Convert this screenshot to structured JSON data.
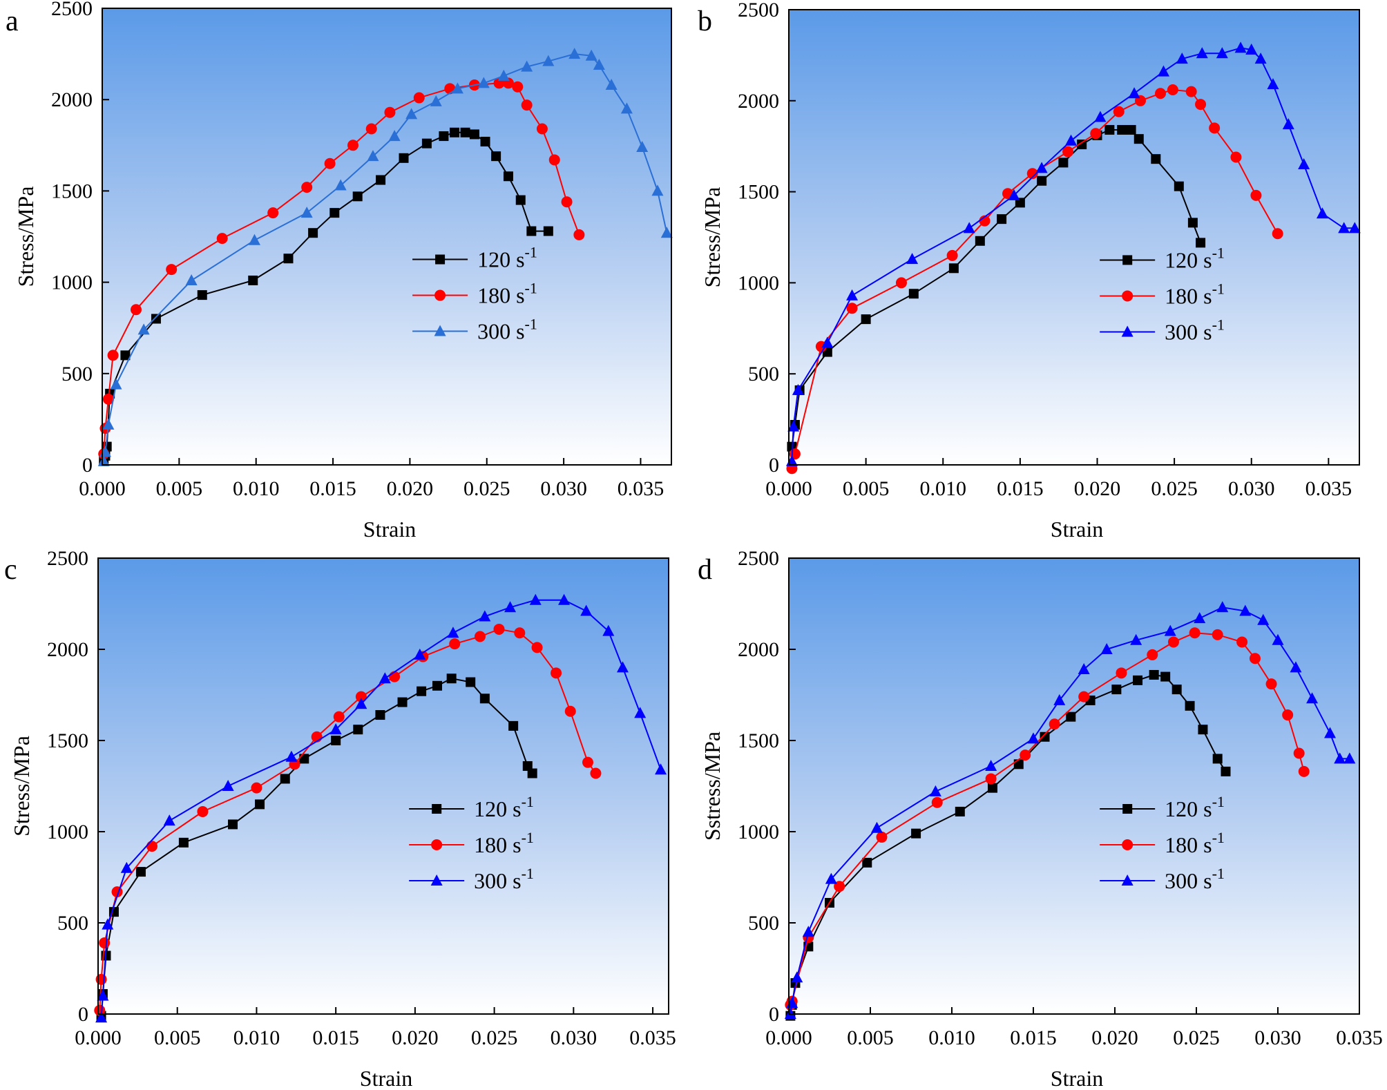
{
  "figure": {
    "panels": [
      "a",
      "b",
      "c",
      "d"
    ]
  },
  "colors": {
    "s120": "#000000",
    "s180": "#ff0000",
    "s300": "#0000ff",
    "s300_a": "#2a6fd6",
    "bg_top": "#5b9ae8",
    "bg_bottom": "#ffffff"
  },
  "chart_data": [
    {
      "panel": "a",
      "type": "line",
      "xlabel": "Strain",
      "ylabel": "Stress/MPa",
      "xlim": [
        0,
        0.037
      ],
      "ylim": [
        0,
        2500
      ],
      "xticks": [
        "0.000",
        "0.005",
        "0.010",
        "0.015",
        "0.020",
        "0.025",
        "0.030",
        "0.035"
      ],
      "yticks": [
        "0",
        "500",
        "1000",
        "1500",
        "2000",
        "2500"
      ],
      "legend": {
        "position": "right-middle"
      },
      "series": [
        {
          "name": "120 s",
          "sup": "-1",
          "color_key": "s120",
          "marker": "square",
          "x": [
            0.0001,
            0.0002,
            0.0003,
            0.0005,
            0.0015,
            0.0035,
            0.0065,
            0.0098,
            0.0121,
            0.0137,
            0.0151,
            0.0166,
            0.0181,
            0.0196,
            0.0211,
            0.0222,
            0.0229,
            0.0236,
            0.0242,
            0.0249,
            0.0256,
            0.0264,
            0.0272,
            0.0279,
            0.029
          ],
          "y": [
            20,
            50,
            100,
            390,
            600,
            800,
            930,
            1010,
            1130,
            1270,
            1380,
            1470,
            1560,
            1680,
            1760,
            1800,
            1820,
            1820,
            1810,
            1770,
            1690,
            1580,
            1450,
            1280,
            1280
          ]
        },
        {
          "name": "180 s",
          "sup": "-1",
          "color_key": "s180",
          "marker": "circle",
          "x": [
            0.0001,
            0.0002,
            0.0004,
            0.0007,
            0.0022,
            0.0045,
            0.0078,
            0.0111,
            0.0133,
            0.0148,
            0.0163,
            0.0175,
            0.0187,
            0.0206,
            0.0226,
            0.0242,
            0.0258,
            0.0264,
            0.027,
            0.0276,
            0.0286,
            0.0294,
            0.0302,
            0.031
          ],
          "y": [
            60,
            200,
            360,
            600,
            850,
            1070,
            1240,
            1380,
            1520,
            1650,
            1750,
            1840,
            1930,
            2010,
            2060,
            2080,
            2090,
            2090,
            2070,
            1970,
            1840,
            1670,
            1440,
            1260
          ]
        },
        {
          "name": "300 s",
          "sup": "-1",
          "color_key": "s300_a",
          "marker": "triangle",
          "x": [
            0.0001,
            0.0002,
            0.0004,
            0.0009,
            0.0027,
            0.0058,
            0.0099,
            0.0133,
            0.0155,
            0.0176,
            0.019,
            0.0201,
            0.0217,
            0.0231,
            0.0248,
            0.0261,
            0.0276,
            0.029,
            0.0307,
            0.0318,
            0.0323,
            0.0331,
            0.0341,
            0.0351,
            0.0361,
            0.0367
          ],
          "y": [
            20,
            70,
            220,
            440,
            740,
            1010,
            1230,
            1380,
            1530,
            1690,
            1800,
            1920,
            1990,
            2060,
            2090,
            2130,
            2180,
            2210,
            2250,
            2240,
            2190,
            2080,
            1950,
            1740,
            1500,
            1270
          ]
        }
      ]
    },
    {
      "panel": "b",
      "type": "line",
      "xlabel": "Strain",
      "ylabel": "Stress/MPa",
      "xlim": [
        0,
        0.037
      ],
      "ylim": [
        0,
        2500
      ],
      "xticks": [
        "0.000",
        "0.005",
        "0.010",
        "0.015",
        "0.020",
        "0.025",
        "0.030",
        "0.035"
      ],
      "yticks": [
        "0",
        "500",
        "1000",
        "1500",
        "2000",
        "2500"
      ],
      "legend": {
        "position": "right-middle"
      },
      "series": [
        {
          "name": "120 s",
          "sup": "-1",
          "color_key": "s120",
          "marker": "square",
          "x": [
            0.0002,
            0.0004,
            0.0007,
            0.0025,
            0.005,
            0.0081,
            0.0107,
            0.0124,
            0.0138,
            0.015,
            0.0164,
            0.0178,
            0.019,
            0.02,
            0.0208,
            0.0216,
            0.0222,
            0.0227,
            0.0238,
            0.0253,
            0.0262,
            0.0267
          ],
          "y": [
            100,
            220,
            410,
            620,
            800,
            940,
            1080,
            1230,
            1350,
            1440,
            1560,
            1660,
            1760,
            1810,
            1840,
            1840,
            1840,
            1790,
            1680,
            1530,
            1330,
            1220
          ]
        },
        {
          "name": "180 s",
          "sup": "-1",
          "color_key": "s180",
          "marker": "circle",
          "x": [
            0.0002,
            0.0004,
            0.0021,
            0.0041,
            0.0073,
            0.0106,
            0.0127,
            0.0142,
            0.0158,
            0.0181,
            0.0199,
            0.0214,
            0.0228,
            0.0241,
            0.0249,
            0.0261,
            0.0267,
            0.0276,
            0.029,
            0.0303,
            0.0317
          ],
          "y": [
            -20,
            60,
            650,
            860,
            1000,
            1150,
            1340,
            1490,
            1600,
            1720,
            1820,
            1940,
            2000,
            2040,
            2060,
            2050,
            1980,
            1850,
            1690,
            1480,
            1270
          ]
        },
        {
          "name": "300 s",
          "sup": "-1",
          "color_key": "s300",
          "marker": "triangle",
          "x": [
            0.0002,
            0.0003,
            0.0006,
            0.0025,
            0.0041,
            0.008,
            0.0117,
            0.0146,
            0.0164,
            0.0183,
            0.0202,
            0.0224,
            0.0243,
            0.0255,
            0.0268,
            0.0281,
            0.0293,
            0.03,
            0.0306,
            0.0314,
            0.0324,
            0.0334,
            0.0346,
            0.036,
            0.0367
          ],
          "y": [
            20,
            210,
            410,
            670,
            930,
            1130,
            1300,
            1480,
            1630,
            1780,
            1910,
            2040,
            2160,
            2230,
            2260,
            2260,
            2290,
            2280,
            2230,
            2090,
            1870,
            1650,
            1380,
            1300,
            1300
          ]
        }
      ]
    },
    {
      "panel": "c",
      "type": "line",
      "xlabel": "Strain",
      "ylabel": "Stress/MPa",
      "xlim": [
        0,
        0.036
      ],
      "ylim": [
        0,
        2500
      ],
      "xticks": [
        "0.000",
        "0.005",
        "0.010",
        "0.015",
        "0.020",
        "0.025",
        "0.030",
        "0.035"
      ],
      "yticks": [
        "0",
        "500",
        "1000",
        "1500",
        "2000",
        "2500"
      ],
      "legend": {
        "position": "right-middle"
      },
      "series": [
        {
          "name": "120 s",
          "sup": "-1",
          "color_key": "s120",
          "marker": "square",
          "x": [
            0.0002,
            0.0003,
            0.0005,
            0.001,
            0.0027,
            0.0054,
            0.0085,
            0.0102,
            0.0118,
            0.013,
            0.015,
            0.0164,
            0.0178,
            0.0192,
            0.0204,
            0.0214,
            0.0223,
            0.0235,
            0.0244,
            0.0262,
            0.0271,
            0.0274
          ],
          "y": [
            -10,
            110,
            320,
            560,
            780,
            940,
            1040,
            1150,
            1290,
            1400,
            1500,
            1560,
            1640,
            1710,
            1770,
            1800,
            1840,
            1820,
            1730,
            1580,
            1360,
            1320
          ]
        },
        {
          "name": "180 s",
          "sup": "-1",
          "color_key": "s180",
          "marker": "circle",
          "x": [
            0.0001,
            0.0002,
            0.0004,
            0.0012,
            0.0034,
            0.0066,
            0.01,
            0.0124,
            0.0138,
            0.0152,
            0.0166,
            0.0187,
            0.0205,
            0.0225,
            0.0241,
            0.0253,
            0.0266,
            0.0277,
            0.0289,
            0.0298,
            0.0309,
            0.0314
          ],
          "y": [
            20,
            190,
            390,
            670,
            920,
            1110,
            1240,
            1370,
            1520,
            1630,
            1740,
            1850,
            1960,
            2030,
            2070,
            2110,
            2090,
            2010,
            1870,
            1660,
            1380,
            1320
          ]
        },
        {
          "name": "300 s",
          "sup": "-1",
          "color_key": "s300",
          "marker": "triangle",
          "x": [
            0.0002,
            0.0003,
            0.0006,
            0.0018,
            0.0045,
            0.0082,
            0.0122,
            0.015,
            0.0166,
            0.0181,
            0.0203,
            0.0224,
            0.0244,
            0.026,
            0.0276,
            0.0294,
            0.0308,
            0.0322,
            0.0331,
            0.0342,
            0.0355
          ],
          "y": [
            -20,
            100,
            490,
            800,
            1060,
            1250,
            1410,
            1560,
            1700,
            1840,
            1970,
            2090,
            2180,
            2230,
            2270,
            2270,
            2210,
            2100,
            1900,
            1650,
            1340
          ]
        }
      ]
    },
    {
      "panel": "d",
      "type": "line",
      "xlabel": "Strain",
      "ylabel": "Sstress/MPa",
      "xlim": [
        0,
        0.035
      ],
      "ylim": [
        0,
        2500
      ],
      "xticks": [
        "0.000",
        "0.005",
        "0.010",
        "0.015",
        "0.020",
        "0.025",
        "0.030",
        "0.035"
      ],
      "yticks": [
        "0",
        "500",
        "1000",
        "1500",
        "2000",
        "2500"
      ],
      "legend": {
        "position": "right-middle"
      },
      "series": [
        {
          "name": "120 s",
          "sup": "-1",
          "color_key": "s120",
          "marker": "square",
          "x": [
            0.0001,
            0.0002,
            0.0004,
            0.0012,
            0.0025,
            0.0048,
            0.0078,
            0.0105,
            0.0125,
            0.0141,
            0.0157,
            0.0173,
            0.0185,
            0.0201,
            0.0214,
            0.0224,
            0.0231,
            0.0238,
            0.0246,
            0.0254,
            0.0263,
            0.0268
          ],
          "y": [
            -10,
            50,
            170,
            370,
            610,
            830,
            990,
            1110,
            1240,
            1370,
            1520,
            1630,
            1720,
            1780,
            1830,
            1860,
            1850,
            1780,
            1690,
            1560,
            1400,
            1330
          ]
        },
        {
          "name": "180 s",
          "sup": "-1",
          "color_key": "s180",
          "marker": "circle",
          "x": [
            0.0001,
            0.0002,
            0.0012,
            0.0031,
            0.0057,
            0.0091,
            0.0124,
            0.0145,
            0.0163,
            0.0181,
            0.0204,
            0.0223,
            0.0236,
            0.0249,
            0.0263,
            0.0278,
            0.0286,
            0.0296,
            0.0306,
            0.0313,
            0.0316
          ],
          "y": [
            50,
            70,
            420,
            700,
            970,
            1160,
            1290,
            1420,
            1590,
            1740,
            1870,
            1970,
            2040,
            2090,
            2080,
            2040,
            1950,
            1810,
            1640,
            1430,
            1330
          ]
        },
        {
          "name": "300 s",
          "sup": "-1",
          "color_key": "s300",
          "marker": "triangle",
          "x": [
            0.0001,
            0.0002,
            0.0005,
            0.0012,
            0.0026,
            0.0054,
            0.009,
            0.0124,
            0.015,
            0.0166,
            0.0181,
            0.0195,
            0.0213,
            0.0234,
            0.0252,
            0.0266,
            0.028,
            0.0291,
            0.03,
            0.0311,
            0.0321,
            0.0332,
            0.0338,
            0.0344
          ],
          "y": [
            0,
            60,
            200,
            450,
            740,
            1020,
            1220,
            1360,
            1510,
            1720,
            1890,
            2000,
            2050,
            2100,
            2170,
            2230,
            2210,
            2160,
            2050,
            1900,
            1730,
            1540,
            1400,
            1400
          ]
        }
      ]
    }
  ]
}
